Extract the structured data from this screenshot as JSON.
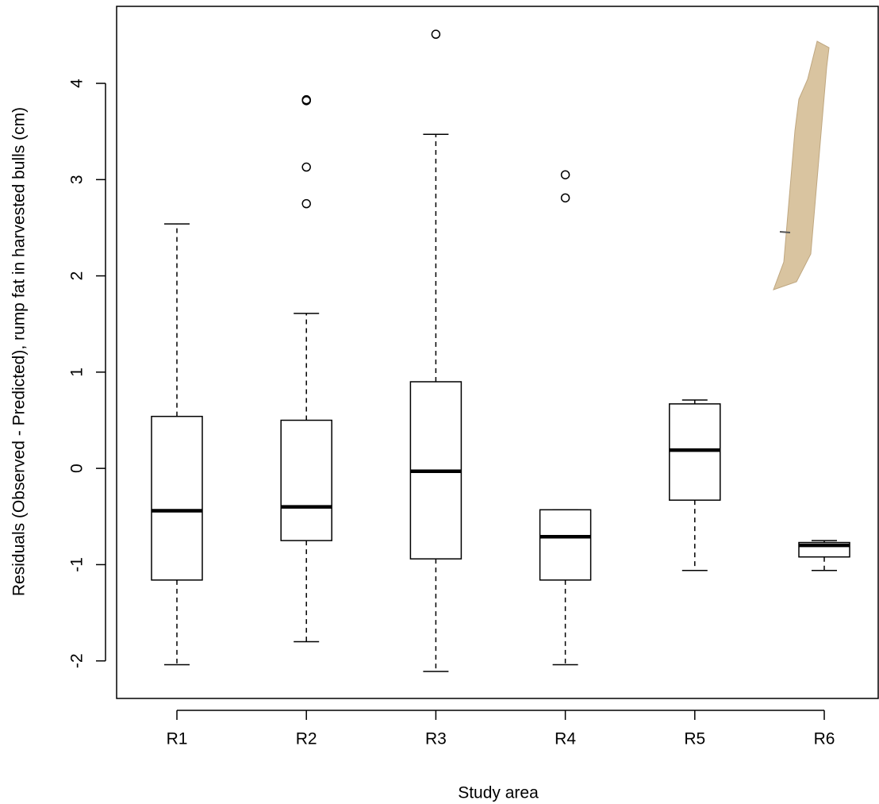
{
  "chart_data": {
    "type": "box",
    "x_label": "Study area",
    "y_label": "Residuals (Observed - Predicted), rump fat in harvested bulls (cm)",
    "categories": [
      "R1",
      "R2",
      "R3",
      "R4",
      "R5",
      "R6"
    ],
    "boxes": [
      {
        "whisker_low": -2.04,
        "q1": -1.16,
        "median": -0.44,
        "q3": 0.54,
        "whisker_high": 2.54,
        "outliers": []
      },
      {
        "whisker_low": -1.8,
        "q1": -0.75,
        "median": -0.4,
        "q3": 0.5,
        "whisker_high": 1.61,
        "outliers": [
          3.82,
          3.83,
          3.13,
          2.75
        ]
      },
      {
        "whisker_low": -2.11,
        "q1": -0.94,
        "median": -0.03,
        "q3": 0.9,
        "whisker_high": 3.47,
        "outliers": [
          4.51
        ]
      },
      {
        "whisker_low": -2.04,
        "q1": -1.16,
        "median": -0.71,
        "q3": -0.43,
        "whisker_high": -0.43,
        "outliers": [
          3.05,
          2.81
        ]
      },
      {
        "whisker_low": -1.06,
        "q1": -0.33,
        "median": 0.19,
        "q3": 0.67,
        "whisker_high": 0.71,
        "outliers": []
      },
      {
        "whisker_low": -1.06,
        "q1": -0.92,
        "median": -0.8,
        "q3": -0.77,
        "whisker_high": -0.75,
        "outliers": []
      }
    ],
    "ylim": [
      -2.39,
      4.8
    ],
    "yticks": [
      -2,
      -1,
      0,
      1,
      2,
      3,
      4
    ]
  }
}
